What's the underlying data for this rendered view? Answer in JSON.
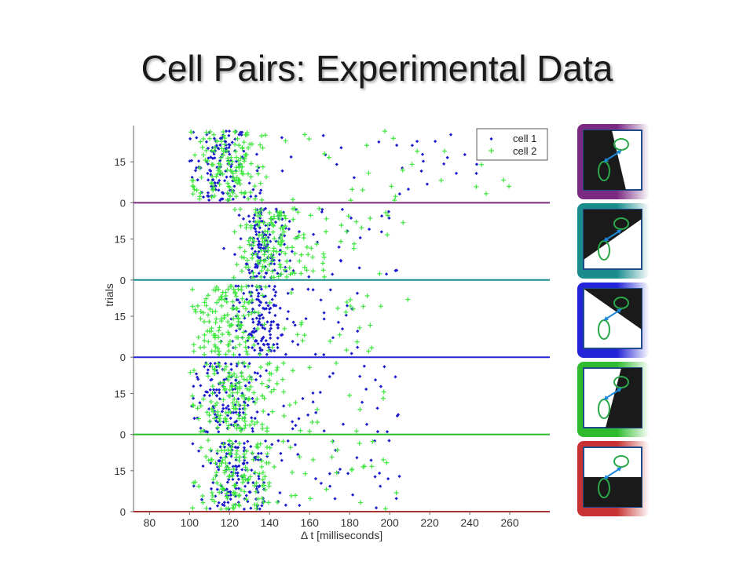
{
  "slide": {
    "title": "Cell Pairs: Experimental Data"
  },
  "chart_data": {
    "type": "scatter",
    "xlabel": "Δ t [milliseconds]",
    "ylabel": "trials",
    "xlim": [
      72,
      280
    ],
    "x_ticks": [
      80,
      100,
      120,
      140,
      160,
      180,
      200,
      220,
      240,
      260
    ],
    "panels": [
      {
        "index": 1,
        "y_ticks": [
          0,
          15
        ],
        "separator_color": "#7b2a82",
        "series": [
          {
            "name": "cell 1",
            "marker": "dot",
            "color": "#1c1ccc",
            "x_center": 115,
            "x_spread": 14,
            "tail_to": 250
          },
          {
            "name": "cell 2",
            "marker": "plus",
            "color": "#3ee83e",
            "x_center": 118,
            "x_spread": 18,
            "tail_to": 262
          }
        ]
      },
      {
        "index": 2,
        "y_ticks": [
          0,
          15
        ],
        "separator_color": "#1a8c8c",
        "series": [
          {
            "name": "cell 1",
            "x_center": 138,
            "x_spread": 10,
            "tail_to": 205
          },
          {
            "name": "cell 2",
            "x_center": 140,
            "x_spread": 14,
            "tail_to": 207
          }
        ]
      },
      {
        "index": 3,
        "y_ticks": [
          0,
          15
        ],
        "separator_color": "#2323d8",
        "series": [
          {
            "name": "cell 1",
            "x_center": 135,
            "x_spread": 12,
            "tail_to": 185
          },
          {
            "name": "cell 2",
            "x_center": 118,
            "x_spread": 14,
            "tail_to": 210
          }
        ]
      },
      {
        "index": 4,
        "y_ticks": [
          0,
          15
        ],
        "separator_color": "#2ebc2e",
        "series": [
          {
            "name": "cell 1",
            "x_center": 120,
            "x_spread": 14,
            "tail_to": 205
          },
          {
            "name": "cell 2",
            "x_center": 122,
            "x_spread": 18,
            "tail_to": 205
          }
        ]
      },
      {
        "index": 5,
        "y_ticks": [
          0,
          15
        ],
        "separator_color": "#a83232",
        "series": [
          {
            "name": "cell 1",
            "x_center": 122,
            "x_spread": 14,
            "tail_to": 205
          },
          {
            "name": "cell 2",
            "x_center": 122,
            "x_spread": 18,
            "tail_to": 210
          }
        ]
      }
    ],
    "legend": {
      "placement": "top-right",
      "entries": [
        "cell 1",
        "cell 2"
      ]
    },
    "grid": false
  },
  "thumbnails": [
    {
      "frame_color": "#7b2a82",
      "stimulus": "diagonal-left-dark"
    },
    {
      "frame_color": "#1a8c8c",
      "stimulus": "diagonal-upper-dark"
    },
    {
      "frame_color": "#2323d8",
      "stimulus": "diagonal-upper-left-dark"
    },
    {
      "frame_color": "#2ebc2e",
      "stimulus": "diagonal-right-dark"
    },
    {
      "frame_color": "#c83232",
      "stimulus": "bottom-half-dark"
    }
  ],
  "colors": {
    "cell1": "#1c1ccc",
    "cell2": "#3ee83e",
    "axis": "#555555",
    "arrow": "#1e88d8",
    "ellipse": "#2aa84a"
  }
}
